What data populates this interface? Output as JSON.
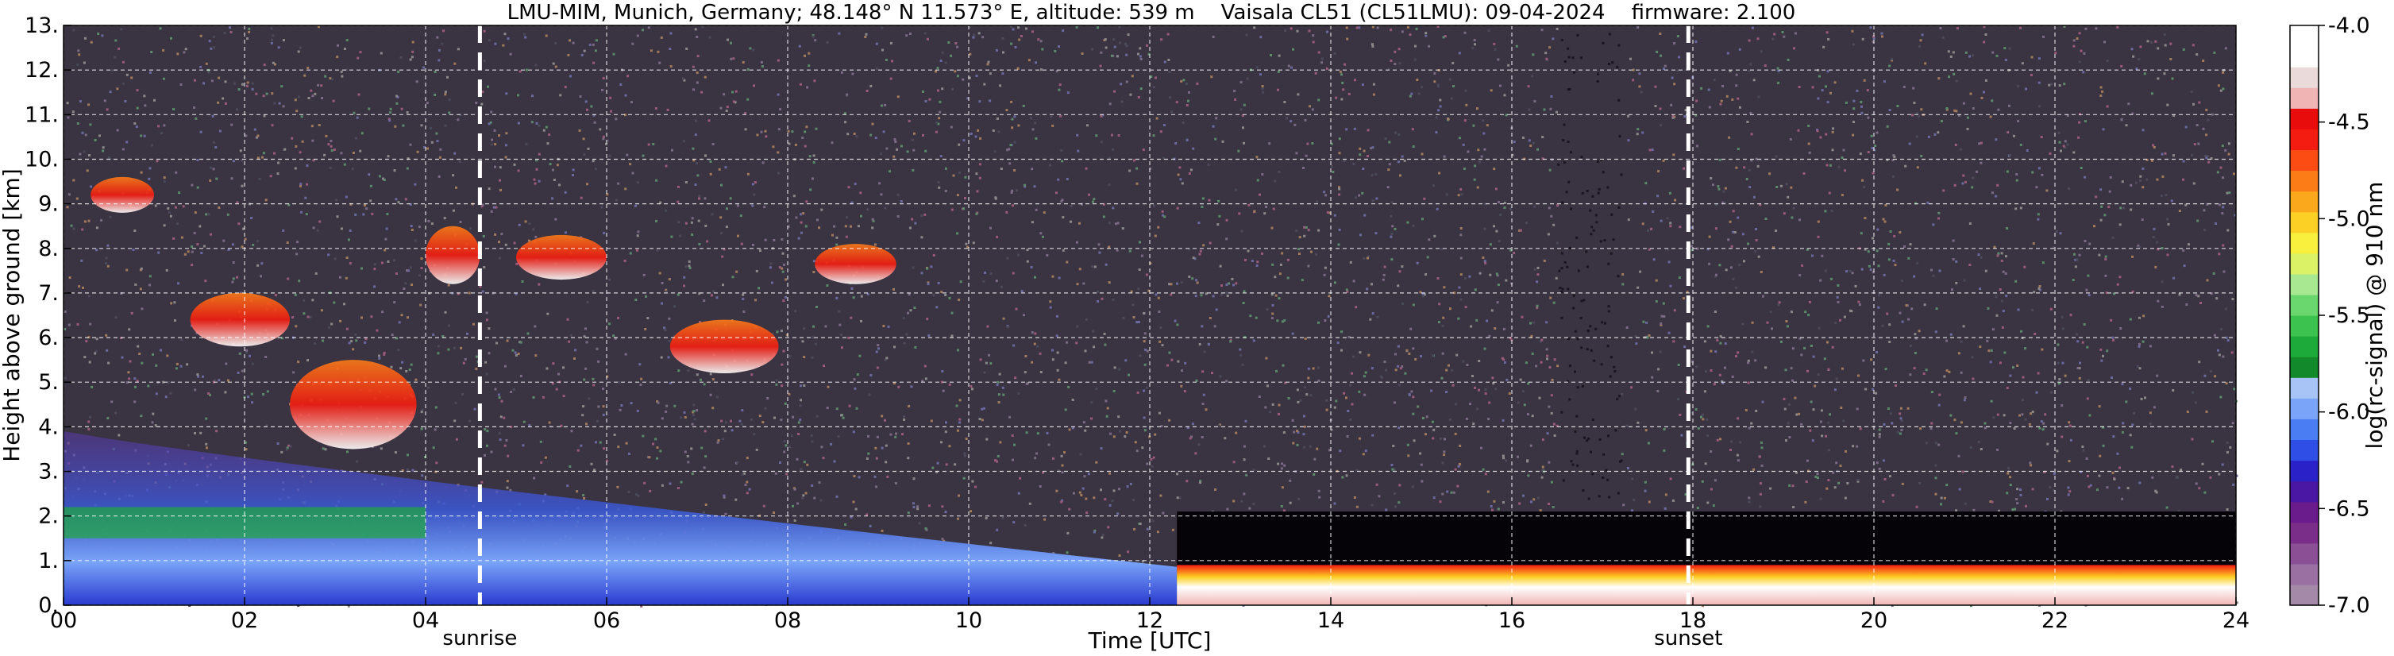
{
  "title": "LMU-MIM, Munich, Germany; 48.148° N 11.573° E, altitude: 539 m    Vaisala CL51 (CL51LMU): 09-04-2024    firmware: 2.100",
  "chart_data": {
    "type": "heatmap",
    "xlabel": "Time [UTC]",
    "ylabel": "Height above ground [km]",
    "xlim": [
      0,
      24
    ],
    "ylim": [
      0,
      13
    ],
    "x_ticks": [
      0,
      2,
      4,
      6,
      8,
      10,
      12,
      14,
      16,
      18,
      20,
      22,
      24
    ],
    "x_tick_labels": [
      "00",
      "02",
      "04",
      "06",
      "08",
      "10",
      "12",
      "14",
      "16",
      "18",
      "20",
      "22",
      "24"
    ],
    "y_ticks": [
      0,
      1,
      2,
      3,
      4,
      5,
      6,
      7,
      8,
      9,
      10,
      11,
      12,
      13
    ],
    "y_tick_labels": [
      "0.",
      "1.",
      "2.",
      "3.",
      "4.",
      "5.",
      "6.",
      "7.",
      "8.",
      "9.",
      "10.",
      "11.",
      "12.",
      "13."
    ],
    "grid": true,
    "colorbar": {
      "label": "log(rc-signal) @ 910 nm",
      "range": [
        -7.0,
        -4.0
      ],
      "ticks": [
        -7.0,
        -6.5,
        -6.0,
        -5.5,
        -5.0,
        -4.5,
        -4.0
      ],
      "tick_labels": [
        "-7.0",
        "-6.5",
        "-6.0",
        "-5.5",
        "-5.0",
        "-4.5",
        "-4.0"
      ],
      "colors": [
        "#a48aa8",
        "#9a6fa2",
        "#8a4f95",
        "#7a2e8a",
        "#6a1c8c",
        "#4a16a4",
        "#2a22c8",
        "#2e4ee6",
        "#4a7cf4",
        "#7aa4f8",
        "#a8c4f6",
        "#128a2c",
        "#1eaa3a",
        "#3cc24e",
        "#6ad66e",
        "#a8e890",
        "#dcf266",
        "#f8f03c",
        "#fcd024",
        "#fca81c",
        "#fc7c18",
        "#fc4c14",
        "#f41c10",
        "#e80c0c",
        "#f0b4b4",
        "#eadada",
        "#ffffff",
        "#ffffff"
      ]
    },
    "events": [
      {
        "label": "sunrise",
        "time": 4.6
      },
      {
        "label": "sunset",
        "time": 17.95
      }
    ],
    "features": [
      {
        "kind": "boundary_layer_aerosol",
        "t_start": 0,
        "t_end": 12.3,
        "z_top": 3.9,
        "level": -5.8
      },
      {
        "kind": "cloud",
        "t_start": 2.5,
        "t_end": 3.9,
        "z_bottom": 3.5,
        "z_top": 5.5,
        "level": -4.8
      },
      {
        "kind": "cloud",
        "t_start": 1.4,
        "t_end": 2.5,
        "z_bottom": 5.8,
        "z_top": 7.0,
        "level": -5.2
      },
      {
        "kind": "cloud",
        "t_start": 4.0,
        "t_end": 4.6,
        "z_bottom": 7.2,
        "z_top": 8.5,
        "level": -5.2
      },
      {
        "kind": "cloud",
        "t_start": 0.3,
        "t_end": 1.0,
        "z_bottom": 8.8,
        "z_top": 9.6,
        "level": -5.3
      },
      {
        "kind": "cloud",
        "t_start": 6.7,
        "t_end": 7.9,
        "z_bottom": 5.2,
        "z_top": 6.4,
        "level": -4.9
      },
      {
        "kind": "cloud",
        "t_start": 5.0,
        "t_end": 6.0,
        "z_bottom": 7.3,
        "z_top": 8.3,
        "level": -5.1
      },
      {
        "kind": "cloud",
        "t_start": 8.3,
        "t_end": 9.2,
        "z_bottom": 7.2,
        "z_top": 8.1,
        "level": -5.1
      },
      {
        "kind": "low_cloud",
        "t_start": 12.3,
        "t_end": 24,
        "z_bottom": 0.0,
        "z_top": 2.1,
        "level": -4.0
      }
    ]
  }
}
